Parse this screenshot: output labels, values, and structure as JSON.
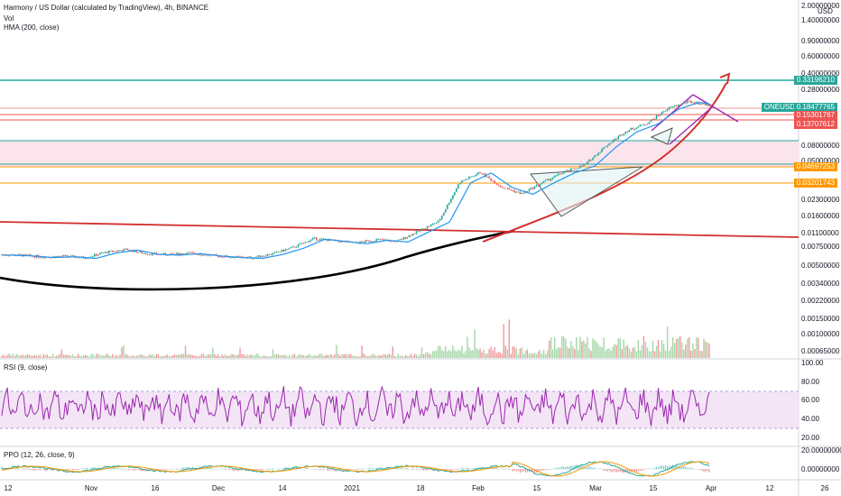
{
  "header": {
    "title": "Harmony / US Dollar (calculated by TradingView), 4h, BINANCE",
    "vol_label": "Vol",
    "hma_label": "HMA (200, close)",
    "rsi_label": "RSI (9, close)",
    "ppo_label": "PPO (12, 26, close, 9)",
    "currency": "USD"
  },
  "colors": {
    "candle_up": "#26a69a",
    "candle_down": "#ef5350",
    "hma": "#2196f3",
    "rsi": "#9c27b0",
    "support_line": "#000000",
    "trend_line": "#d32f2f",
    "arrow": "#d32f2f",
    "pattern": "#9c27b0",
    "zone": "#fce4ec",
    "resistance_line": "#26a69a",
    "fib_line": "#ff9800"
  },
  "price_axis": {
    "labels": [
      "2.00000000",
      "1.40000000",
      "0.90000000",
      "0.60000000",
      "0.40000000",
      "0.28000000",
      "0.08000000",
      "0.05000000",
      "0.02300000",
      "0.01600000",
      "0.01100000",
      "0.00750000",
      "0.00500000",
      "0.00340000",
      "0.00220000",
      "0.00150000",
      "0.00100000",
      "0.00065000"
    ]
  },
  "price_tags": [
    {
      "label": "0.33196210",
      "color": "#26a69a"
    },
    {
      "label": "ONEUSD",
      "color": "#26a69a"
    },
    {
      "label": "0.18477765",
      "color": "#26a69a"
    },
    {
      "label": "0.15301767",
      "color": "#ef5350"
    },
    {
      "label": "0.13707612",
      "color": "#ef5350"
    },
    {
      "label": "0.04697253",
      "color": "#ff9800"
    },
    {
      "label": "0.03201743",
      "color": "#ff9800"
    }
  ],
  "rsi_axis": {
    "labels": [
      "100.00",
      "80.00",
      "60.00",
      "40.00",
      "20.00"
    ]
  },
  "ppo_axis": {
    "labels": [
      "20.00000000",
      "0.00000000"
    ]
  },
  "time_axis": {
    "labels": [
      "12",
      "Nov",
      "16",
      "Dec",
      "14",
      "2021",
      "18",
      "Feb",
      "15",
      "Mar",
      "15",
      "Apr",
      "12",
      "26"
    ]
  },
  "chart_data": {
    "type": "candlestick",
    "symbol": "ONEUSD",
    "scale": "log",
    "series": [
      {
        "name": "ONEUSD",
        "values": [
          0.0055,
          0.0054,
          0.0052,
          0.0053,
          0.0051,
          0.0058,
          0.0062,
          0.0056,
          0.0055,
          0.0057,
          0.0054,
          0.0052,
          0.0051,
          0.0056,
          0.0065,
          0.008,
          0.0076,
          0.0072,
          0.0078,
          0.0075,
          0.0095,
          0.012,
          0.03,
          0.038,
          0.027,
          0.023,
          0.03,
          0.038,
          0.045,
          0.07,
          0.1,
          0.12,
          0.17,
          0.2,
          0.185
        ]
      }
    ],
    "levels": [
      0.3319621,
      0.15301767,
      0.13707612,
      0.04697253,
      0.03201743
    ],
    "rsi": {
      "name": "RSI (9, close)",
      "range": [
        20,
        100
      ],
      "bands": [
        30,
        70
      ]
    },
    "ppo": {
      "name": "PPO (12, 26, close, 9)"
    }
  }
}
